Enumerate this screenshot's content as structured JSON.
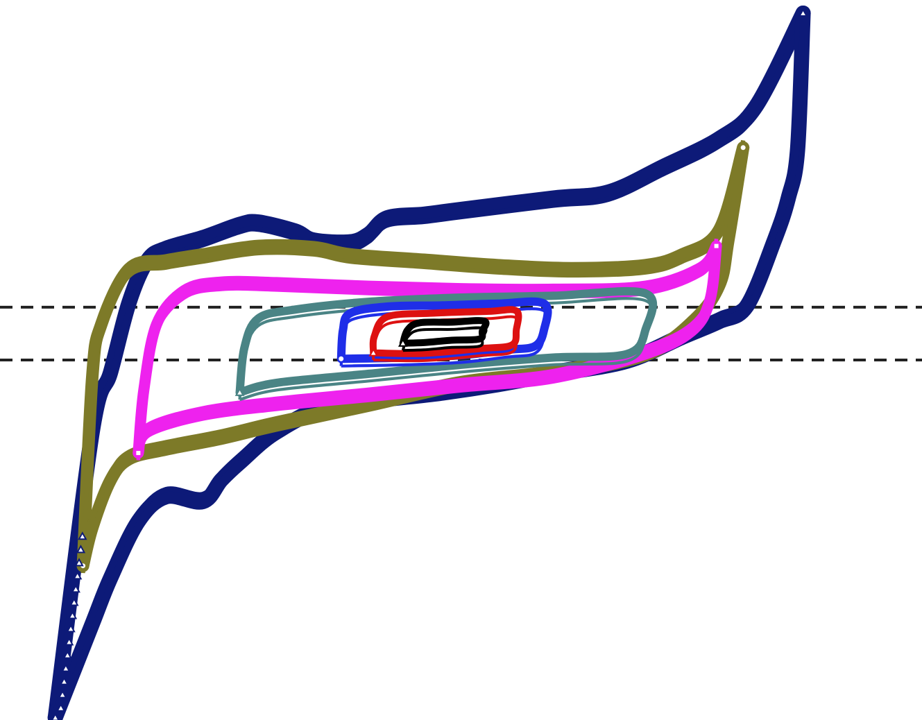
{
  "chart_data": {
    "type": "line",
    "title": "",
    "xlabel": "",
    "ylabel": "",
    "xlim": [
      0,
      100
    ],
    "ylim": [
      -60,
      60
    ],
    "grid": false,
    "legend": "none",
    "reference_lines": [
      {
        "y": 8.8,
        "style": "dashed",
        "color": "#222222"
      },
      {
        "y": 0,
        "style": "dashed",
        "color": "#222222"
      }
    ],
    "series": [
      {
        "marker": "triangle",
        "color": "#0d1a78",
        "upper": [
          [
            6,
            -59.6
          ],
          [
            10,
            -12
          ],
          [
            12,
            -2
          ],
          [
            14,
            9.6
          ],
          [
            16,
            16.6
          ],
          [
            18,
            18.6
          ],
          [
            22,
            20.4
          ],
          [
            26,
            22.6
          ],
          [
            28,
            23
          ],
          [
            32,
            21.5
          ],
          [
            34,
            20
          ],
          [
            38,
            19.7
          ],
          [
            40,
            21
          ],
          [
            42,
            23.7
          ],
          [
            46,
            24.3
          ],
          [
            50,
            25.1
          ],
          [
            60,
            27
          ],
          [
            66,
            28
          ],
          [
            72,
            32.3
          ],
          [
            78,
            36.9
          ],
          [
            82,
            42.3
          ],
          [
            87.1,
            57.8
          ]
        ],
        "lower": [
          [
            87.1,
            57.8
          ],
          [
            86.5,
            35
          ],
          [
            85.5,
            27
          ],
          [
            84,
            20
          ],
          [
            81,
            9
          ],
          [
            78,
            6.4
          ],
          [
            74,
            3.8
          ],
          [
            68,
            -0.2
          ],
          [
            60,
            -2.4
          ],
          [
            54,
            -4.1
          ],
          [
            48,
            -5.5
          ],
          [
            36,
            -7.9
          ],
          [
            30,
            -12
          ],
          [
            26,
            -17.1
          ],
          [
            24,
            -20
          ],
          [
            22,
            -23.6
          ],
          [
            18,
            -22.8
          ],
          [
            15,
            -26.9
          ],
          [
            12,
            -36.3
          ],
          [
            10,
            -44
          ],
          [
            6,
            -59.6
          ]
        ]
      },
      {
        "marker": "circle",
        "color": "#7d7a28",
        "upper": [
          [
            9,
            -34.3
          ],
          [
            10,
            -3
          ],
          [
            11,
            6
          ],
          [
            14,
            15.2
          ],
          [
            18,
            16.6
          ],
          [
            22,
            17.6
          ],
          [
            28,
            19
          ],
          [
            34,
            18.8
          ],
          [
            38,
            17.6
          ],
          [
            46,
            16.7
          ],
          [
            54,
            15.8
          ],
          [
            62,
            15.3
          ],
          [
            70,
            15.8
          ],
          [
            74,
            17.6
          ],
          [
            78,
            21.7
          ],
          [
            80.6,
            35.4
          ]
        ],
        "lower": [
          [
            80.6,
            35.4
          ],
          [
            79,
            20
          ],
          [
            78,
            12.4
          ],
          [
            75,
            6
          ],
          [
            70,
            0.8
          ],
          [
            60,
            -2.4
          ],
          [
            50,
            -4.2
          ],
          [
            40,
            -7.6
          ],
          [
            30,
            -10.9
          ],
          [
            24,
            -13.1
          ],
          [
            18,
            -14.9
          ],
          [
            14,
            -16.5
          ],
          [
            12,
            -20
          ],
          [
            10,
            -28
          ],
          [
            9,
            -34.3
          ]
        ]
      },
      {
        "marker": "square",
        "color": "#ee22ee",
        "upper": [
          [
            15,
            -15.5
          ],
          [
            15.6,
            -5
          ],
          [
            17,
            6
          ],
          [
            20,
            11.6
          ],
          [
            24,
            13
          ],
          [
            30,
            12.9
          ],
          [
            40,
            12.3
          ],
          [
            50,
            11.9
          ],
          [
            60,
            11.8
          ],
          [
            70,
            12.3
          ],
          [
            76,
            15.4
          ],
          [
            77.7,
            19
          ]
        ],
        "lower": [
          [
            77.7,
            19
          ],
          [
            77,
            10
          ],
          [
            75,
            4.8
          ],
          [
            70,
            1
          ],
          [
            60,
            -3
          ],
          [
            50,
            -4.5
          ],
          [
            40,
            -6.1
          ],
          [
            30,
            -7.6
          ],
          [
            22,
            -9.2
          ],
          [
            16,
            -12
          ],
          [
            15,
            -15.5
          ]
        ]
      },
      {
        "marker": "triangle",
        "color": "#4a8485",
        "upper": [
          [
            26,
            -5.4
          ],
          [
            26.5,
            2
          ],
          [
            28,
            6.9
          ],
          [
            32,
            8.4
          ],
          [
            40,
            9.7
          ],
          [
            50,
            10.4
          ],
          [
            60,
            10.7
          ],
          [
            70,
            11.1
          ],
          [
            70,
            5
          ],
          [
            68,
            1
          ],
          [
            60,
            0.4
          ],
          [
            50,
            -0.8
          ],
          [
            40,
            -2.3
          ],
          [
            30,
            -3.8
          ],
          [
            26,
            -5.4
          ]
        ]
      },
      {
        "marker": "circle",
        "color": "#1f2ee8",
        "upper": [
          [
            37,
            0.2
          ],
          [
            37.2,
            5
          ],
          [
            38,
            7.8
          ],
          [
            42,
            8.9
          ],
          [
            48,
            9.1
          ],
          [
            54,
            9.4
          ],
          [
            59,
            9.4
          ],
          [
            59,
            5
          ],
          [
            58,
            2.3
          ],
          [
            55,
            1.7
          ],
          [
            50,
            0.8
          ],
          [
            44,
            0.4
          ],
          [
            37,
            0.2
          ]
        ]
      },
      {
        "marker": "triangle",
        "color": "#dd1111",
        "upper": [
          [
            40.5,
            1.2
          ],
          [
            40.6,
            4
          ],
          [
            42,
            7.2
          ],
          [
            47,
            7.8
          ],
          [
            53,
            8.1
          ],
          [
            56,
            8.2
          ],
          [
            56,
            5
          ],
          [
            55.5,
            2.5
          ],
          [
            52,
            1.9
          ],
          [
            46,
            1.1
          ],
          [
            40.5,
            1.2
          ]
        ]
      },
      {
        "marker": "triangle",
        "color": "#000000",
        "upper": [
          [
            43.7,
            2.8
          ],
          [
            44.2,
            5
          ],
          [
            45.5,
            6.2
          ],
          [
            49,
            6.3
          ],
          [
            52.5,
            6.5
          ],
          [
            52.3,
            4.8
          ],
          [
            52,
            3.5
          ],
          [
            49,
            3.3
          ],
          [
            46,
            2.9
          ],
          [
            43.7,
            2.8
          ]
        ]
      }
    ]
  }
}
